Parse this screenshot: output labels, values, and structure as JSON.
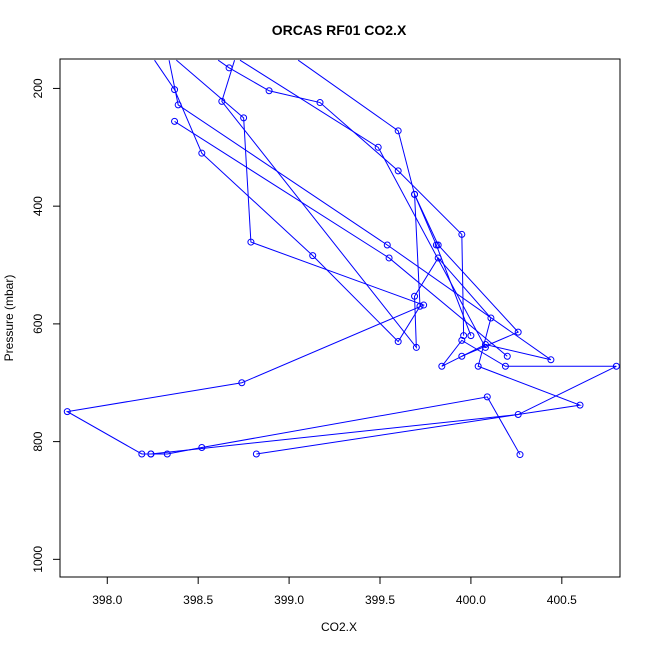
{
  "chart_data": {
    "type": "line",
    "title": "ORCAS RF01 CO2.X",
    "xlabel": "CO2.X",
    "ylabel": "Pressure (mbar)",
    "xlim": [
      397.74,
      400.82
    ],
    "ylim": [
      1030,
      150
    ],
    "y_reversed": true,
    "grid": false,
    "legend": "none",
    "color": "#0000ff",
    "xticks": [
      {
        "value": 398.0,
        "label": "398.0"
      },
      {
        "value": 398.5,
        "label": "398.5"
      },
      {
        "value": 399.0,
        "label": "399.0"
      },
      {
        "value": 399.5,
        "label": "399.5"
      },
      {
        "value": 400.0,
        "label": "400.0"
      },
      {
        "value": 400.5,
        "label": "400.5"
      }
    ],
    "yticks": [
      {
        "value": 200,
        "label": "200"
      },
      {
        "value": 400,
        "label": "400"
      },
      {
        "value": 600,
        "label": "600"
      },
      {
        "value": 800,
        "label": "800"
      },
      {
        "value": 1000,
        "label": "1000"
      }
    ],
    "series": [
      {
        "points": [
          [
            398.38,
            152
          ],
          [
            398.75,
            250
          ],
          [
            398.79,
            461
          ],
          [
            399.74,
            568
          ],
          [
            398.74,
            700
          ],
          [
            397.78,
            749
          ],
          [
            398.19,
            821
          ],
          [
            398.24,
            821
          ],
          [
            398.33,
            821
          ],
          [
            398.52,
            810
          ],
          [
            400.09,
            724
          ],
          [
            400.27,
            822
          ]
        ]
      },
      {
        "points": [
          [
            398.26,
            152
          ],
          [
            398.37,
            202
          ],
          [
            398.52,
            310
          ],
          [
            399.13,
            484
          ],
          [
            399.6,
            630
          ],
          [
            399.72,
            570
          ],
          [
            399.69,
            380
          ],
          [
            399.82,
            466
          ],
          [
            400.26,
            614
          ],
          [
            399.95,
            655
          ]
        ]
      },
      {
        "points": [
          [
            398.34,
            152
          ],
          [
            398.39,
            228
          ],
          [
            399.54,
            466
          ],
          [
            400.44,
            661
          ],
          [
            400.08,
            635
          ],
          [
            399.84,
            672
          ],
          [
            399.95,
            628
          ],
          [
            400.19,
            672
          ],
          [
            400.8,
            672
          ],
          [
            400.26,
            754
          ],
          [
            398.24,
            821
          ]
        ]
      },
      {
        "points": [
          [
            398.7,
            152
          ],
          [
            398.63,
            222
          ],
          [
            399.7,
            640
          ],
          [
            399.69,
            553
          ],
          [
            399.82,
            488
          ],
          [
            400.11,
            590
          ],
          [
            400.04,
            672
          ],
          [
            400.6,
            738
          ],
          [
            398.82,
            821
          ]
        ]
      },
      {
        "points": [
          [
            399.05,
            152
          ],
          [
            399.6,
            272
          ],
          [
            399.69,
            380
          ],
          [
            399.81,
            466
          ],
          [
            400.0,
            620
          ]
        ]
      },
      {
        "points": [
          [
            398.73,
            152
          ],
          [
            399.49,
            300
          ],
          [
            400.08,
            640
          ]
        ]
      },
      {
        "points": [
          [
            398.61,
            152
          ],
          [
            398.67,
            165
          ],
          [
            398.89,
            204
          ],
          [
            399.17,
            224
          ],
          [
            399.6,
            340
          ],
          [
            399.95,
            448
          ],
          [
            399.96,
            620
          ]
        ]
      },
      {
        "points": [
          [
            398.37,
            256
          ],
          [
            399.55,
            488
          ],
          [
            400.2,
            655
          ]
        ]
      }
    ]
  }
}
